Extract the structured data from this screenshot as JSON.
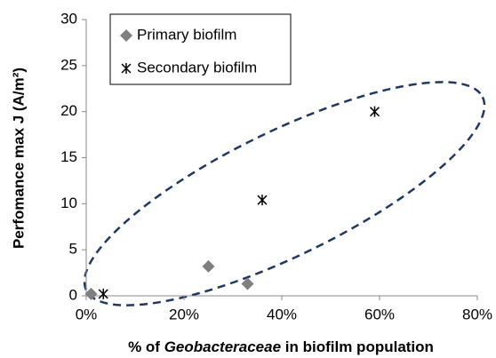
{
  "chart_data": {
    "type": "scatter",
    "x_label": [
      "% of ",
      "Geobacteraceae",
      " in biofilm population"
    ],
    "y_label": "Perfomance max J (A/m²)",
    "series": [
      {
        "name": "Primary biofilm",
        "color": "#7f7f7f",
        "marker": "diamond",
        "x": [
          1,
          25,
          33
        ],
        "values": [
          0.2,
          3.2,
          1.3
        ]
      },
      {
        "name": "Secondary biofilm",
        "color": "#000000",
        "marker": "asterisk",
        "x": [
          3.5,
          36,
          59
        ],
        "values": [
          0.2,
          10.4,
          20
        ]
      }
    ],
    "xlim": [
      0,
      80
    ],
    "xticks": [
      {
        "value": 0,
        "label": "0%"
      },
      {
        "value": 20,
        "label": "20%"
      },
      {
        "value": 40,
        "label": "40%"
      },
      {
        "value": 60,
        "label": "60%"
      },
      {
        "value": 80,
        "label": "80%"
      }
    ],
    "ylim": [
      0,
      30
    ],
    "yticks": [
      0,
      5,
      10,
      15,
      20,
      25,
      30
    ],
    "grid": false,
    "legend": "top-left"
  }
}
